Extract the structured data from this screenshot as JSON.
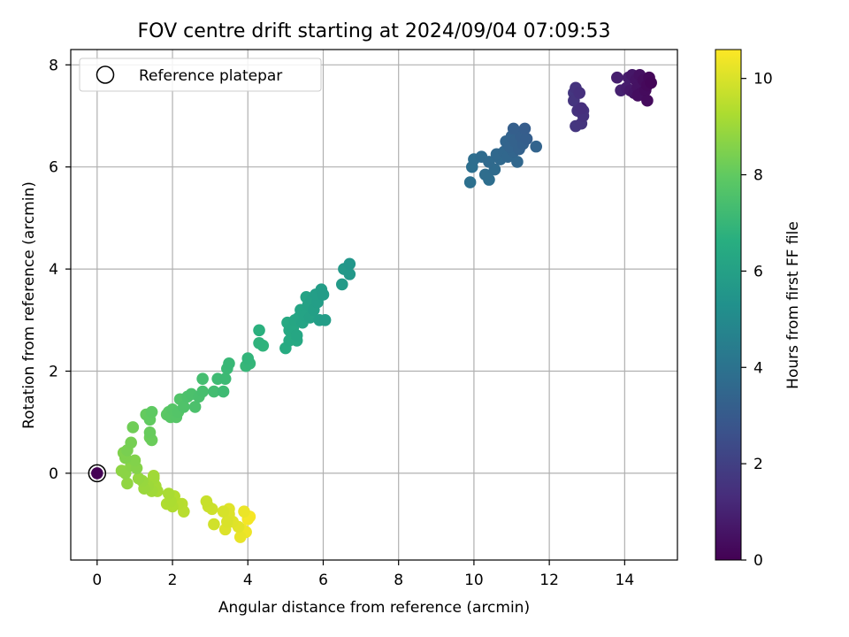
{
  "chart_data": {
    "type": "scatter",
    "title": "FOV centre drift starting at 2024/09/04 07:09:53",
    "xlabel": "Angular distance from reference (arcmin)",
    "ylabel": "Rotation from reference (arcmin)",
    "xlim": [
      -0.7,
      15.4
    ],
    "ylim": [
      -1.7,
      8.3
    ],
    "xticks": [
      0,
      2,
      4,
      6,
      8,
      10,
      12,
      14
    ],
    "yticks": [
      0,
      2,
      4,
      6,
      8
    ],
    "grid": true,
    "legend": {
      "position": "top-left",
      "entries": [
        "Reference platepar"
      ]
    },
    "reference_point": {
      "x": 0,
      "y": 0,
      "hours": 0
    },
    "colorbar": {
      "label": "Hours from first FF file",
      "range": [
        0,
        10.6
      ],
      "ticks": [
        0,
        2,
        4,
        6,
        8,
        10
      ],
      "colormap": "viridis"
    },
    "points": [
      {
        "x": 13.8,
        "y": 7.75,
        "h": 0.9
      },
      {
        "x": 13.9,
        "y": 7.5,
        "h": 0.95
      },
      {
        "x": 14.05,
        "y": 7.55,
        "h": 0.85
      },
      {
        "x": 14.1,
        "y": 7.75,
        "h": 0.8
      },
      {
        "x": 14.15,
        "y": 7.5,
        "h": 0.7
      },
      {
        "x": 14.2,
        "y": 7.8,
        "h": 0.65
      },
      {
        "x": 14.25,
        "y": 7.45,
        "h": 0.6
      },
      {
        "x": 14.3,
        "y": 7.7,
        "h": 0.55
      },
      {
        "x": 14.35,
        "y": 7.55,
        "h": 0.5
      },
      {
        "x": 14.4,
        "y": 7.8,
        "h": 0.45
      },
      {
        "x": 14.45,
        "y": 7.45,
        "h": 0.4
      },
      {
        "x": 14.5,
        "y": 7.7,
        "h": 0.35
      },
      {
        "x": 14.55,
        "y": 7.5,
        "h": 0.3
      },
      {
        "x": 14.6,
        "y": 7.6,
        "h": 0.25
      },
      {
        "x": 14.65,
        "y": 7.75,
        "h": 0.2
      },
      {
        "x": 14.6,
        "y": 7.3,
        "h": 0.3
      },
      {
        "x": 14.7,
        "y": 7.65,
        "h": 0.15
      },
      {
        "x": 14.35,
        "y": 7.4,
        "h": 0.4
      },
      {
        "x": 12.65,
        "y": 7.3,
        "h": 1.6
      },
      {
        "x": 12.7,
        "y": 7.55,
        "h": 1.55
      },
      {
        "x": 12.75,
        "y": 7.1,
        "h": 1.5
      },
      {
        "x": 12.8,
        "y": 7.45,
        "h": 1.45
      },
      {
        "x": 12.85,
        "y": 7.15,
        "h": 1.4
      },
      {
        "x": 12.9,
        "y": 7.0,
        "h": 1.5
      },
      {
        "x": 12.7,
        "y": 6.8,
        "h": 1.65
      },
      {
        "x": 12.85,
        "y": 6.85,
        "h": 1.6
      },
      {
        "x": 12.65,
        "y": 7.45,
        "h": 1.7
      },
      {
        "x": 12.9,
        "y": 7.1,
        "h": 1.55
      },
      {
        "x": 9.9,
        "y": 5.7,
        "h": 3.9
      },
      {
        "x": 9.95,
        "y": 6.0,
        "h": 3.85
      },
      {
        "x": 10.0,
        "y": 6.15,
        "h": 3.8
      },
      {
        "x": 10.2,
        "y": 6.2,
        "h": 3.7
      },
      {
        "x": 10.3,
        "y": 5.85,
        "h": 3.75
      },
      {
        "x": 10.4,
        "y": 6.1,
        "h": 3.65
      },
      {
        "x": 10.4,
        "y": 5.75,
        "h": 3.8
      },
      {
        "x": 10.55,
        "y": 5.95,
        "h": 3.7
      },
      {
        "x": 10.6,
        "y": 6.25,
        "h": 3.55
      },
      {
        "x": 10.7,
        "y": 6.15,
        "h": 3.6
      },
      {
        "x": 10.8,
        "y": 6.3,
        "h": 3.5
      },
      {
        "x": 10.85,
        "y": 6.5,
        "h": 3.45
      },
      {
        "x": 10.9,
        "y": 6.2,
        "h": 3.5
      },
      {
        "x": 10.95,
        "y": 6.4,
        "h": 3.4
      },
      {
        "x": 11.0,
        "y": 6.6,
        "h": 3.35
      },
      {
        "x": 11.05,
        "y": 6.3,
        "h": 3.45
      },
      {
        "x": 11.1,
        "y": 6.5,
        "h": 3.3
      },
      {
        "x": 11.15,
        "y": 6.1,
        "h": 3.5
      },
      {
        "x": 11.2,
        "y": 6.35,
        "h": 3.3
      },
      {
        "x": 11.25,
        "y": 6.6,
        "h": 3.2
      },
      {
        "x": 11.3,
        "y": 6.45,
        "h": 3.25
      },
      {
        "x": 11.35,
        "y": 6.75,
        "h": 3.1
      },
      {
        "x": 11.4,
        "y": 6.55,
        "h": 3.15
      },
      {
        "x": 11.05,
        "y": 6.75,
        "h": 3.2
      },
      {
        "x": 11.65,
        "y": 6.4,
        "h": 3.4
      },
      {
        "x": 6.7,
        "y": 4.1,
        "h": 5.55
      },
      {
        "x": 6.7,
        "y": 3.9,
        "h": 5.6
      },
      {
        "x": 6.55,
        "y": 4.0,
        "h": 5.65
      },
      {
        "x": 6.5,
        "y": 3.7,
        "h": 5.7
      },
      {
        "x": 6.0,
        "y": 3.5,
        "h": 5.8
      },
      {
        "x": 5.95,
        "y": 3.6,
        "h": 5.85
      },
      {
        "x": 5.85,
        "y": 3.35,
        "h": 5.9
      },
      {
        "x": 5.8,
        "y": 3.5,
        "h": 5.9
      },
      {
        "x": 5.75,
        "y": 3.2,
        "h": 5.95
      },
      {
        "x": 5.7,
        "y": 3.4,
        "h": 6.0
      },
      {
        "x": 5.65,
        "y": 3.05,
        "h": 6.05
      },
      {
        "x": 5.6,
        "y": 3.3,
        "h": 6.05
      },
      {
        "x": 5.55,
        "y": 3.45,
        "h": 6.1
      },
      {
        "x": 5.5,
        "y": 3.1,
        "h": 6.1
      },
      {
        "x": 5.45,
        "y": 2.95,
        "h": 6.15
      },
      {
        "x": 5.4,
        "y": 3.2,
        "h": 6.15
      },
      {
        "x": 5.35,
        "y": 3.05,
        "h": 6.2
      },
      {
        "x": 5.3,
        "y": 2.7,
        "h": 6.25
      },
      {
        "x": 5.25,
        "y": 3.0,
        "h": 6.25
      },
      {
        "x": 5.2,
        "y": 2.85,
        "h": 6.3
      },
      {
        "x": 5.1,
        "y": 2.8,
        "h": 6.35
      },
      {
        "x": 5.1,
        "y": 2.6,
        "h": 6.4
      },
      {
        "x": 5.05,
        "y": 2.95,
        "h": 6.4
      },
      {
        "x": 5.3,
        "y": 2.6,
        "h": 6.35
      },
      {
        "x": 5.0,
        "y": 2.45,
        "h": 6.5
      },
      {
        "x": 5.9,
        "y": 3.0,
        "h": 5.9
      },
      {
        "x": 6.05,
        "y": 3.0,
        "h": 5.85
      },
      {
        "x": 4.3,
        "y": 2.8,
        "h": 6.7
      },
      {
        "x": 4.3,
        "y": 2.55,
        "h": 6.8
      },
      {
        "x": 4.4,
        "y": 2.5,
        "h": 6.85
      },
      {
        "x": 4.0,
        "y": 2.25,
        "h": 6.9
      },
      {
        "x": 3.95,
        "y": 2.1,
        "h": 7.0
      },
      {
        "x": 4.05,
        "y": 2.15,
        "h": 6.95
      },
      {
        "x": 3.5,
        "y": 2.15,
        "h": 7.05
      },
      {
        "x": 3.45,
        "y": 2.05,
        "h": 7.1
      },
      {
        "x": 3.4,
        "y": 1.85,
        "h": 7.15
      },
      {
        "x": 3.35,
        "y": 1.6,
        "h": 7.2
      },
      {
        "x": 3.2,
        "y": 1.85,
        "h": 7.2
      },
      {
        "x": 3.1,
        "y": 1.6,
        "h": 7.3
      },
      {
        "x": 2.8,
        "y": 1.85,
        "h": 7.35
      },
      {
        "x": 2.8,
        "y": 1.6,
        "h": 7.4
      },
      {
        "x": 2.7,
        "y": 1.5,
        "h": 7.45
      },
      {
        "x": 2.6,
        "y": 1.3,
        "h": 7.5
      },
      {
        "x": 2.5,
        "y": 1.55,
        "h": 7.5
      },
      {
        "x": 2.4,
        "y": 1.5,
        "h": 7.55
      },
      {
        "x": 2.3,
        "y": 1.3,
        "h": 7.6
      },
      {
        "x": 2.2,
        "y": 1.45,
        "h": 7.65
      },
      {
        "x": 2.15,
        "y": 1.2,
        "h": 7.7
      },
      {
        "x": 2.1,
        "y": 1.1,
        "h": 7.75
      },
      {
        "x": 2.0,
        "y": 1.25,
        "h": 7.75
      },
      {
        "x": 1.95,
        "y": 1.1,
        "h": 7.8
      },
      {
        "x": 1.9,
        "y": 1.2,
        "h": 7.85
      },
      {
        "x": 1.85,
        "y": 1.15,
        "h": 7.85
      },
      {
        "x": 1.45,
        "y": 1.2,
        "h": 7.95
      },
      {
        "x": 1.4,
        "y": 1.05,
        "h": 8.0
      },
      {
        "x": 1.3,
        "y": 1.15,
        "h": 8.05
      },
      {
        "x": 1.4,
        "y": 0.8,
        "h": 8.1
      },
      {
        "x": 1.45,
        "y": 0.65,
        "h": 8.15
      },
      {
        "x": 1.4,
        "y": 0.7,
        "h": 8.2
      },
      {
        "x": 0.95,
        "y": 0.9,
        "h": 8.25
      },
      {
        "x": 0.9,
        "y": 0.6,
        "h": 8.35
      },
      {
        "x": 0.8,
        "y": 0.45,
        "h": 8.4
      },
      {
        "x": 0.75,
        "y": 0.3,
        "h": 8.5
      },
      {
        "x": 0.7,
        "y": 0.4,
        "h": 8.5
      },
      {
        "x": 1.0,
        "y": 0.25,
        "h": 8.55
      },
      {
        "x": 1.05,
        "y": 0.1,
        "h": 8.6
      },
      {
        "x": 0.9,
        "y": 0.15,
        "h": 8.65
      },
      {
        "x": 0.75,
        "y": 0.0,
        "h": 8.7
      },
      {
        "x": 0.65,
        "y": 0.05,
        "h": 8.75
      },
      {
        "x": 0.8,
        "y": -0.2,
        "h": 8.8
      },
      {
        "x": 1.1,
        "y": -0.1,
        "h": 8.85
      },
      {
        "x": 1.2,
        "y": -0.15,
        "h": 8.9
      },
      {
        "x": 1.25,
        "y": -0.3,
        "h": 8.95
      },
      {
        "x": 1.35,
        "y": -0.25,
        "h": 9.0
      },
      {
        "x": 1.45,
        "y": -0.35,
        "h": 9.05
      },
      {
        "x": 1.5,
        "y": -0.1,
        "h": 9.05
      },
      {
        "x": 1.55,
        "y": -0.25,
        "h": 9.1
      },
      {
        "x": 1.6,
        "y": -0.35,
        "h": 9.15
      },
      {
        "x": 1.5,
        "y": -0.05,
        "h": 9.1
      },
      {
        "x": 1.9,
        "y": -0.4,
        "h": 9.2
      },
      {
        "x": 1.95,
        "y": -0.55,
        "h": 9.25
      },
      {
        "x": 2.0,
        "y": -0.65,
        "h": 9.3
      },
      {
        "x": 1.85,
        "y": -0.6,
        "h": 9.3
      },
      {
        "x": 2.05,
        "y": -0.45,
        "h": 9.35
      },
      {
        "x": 2.15,
        "y": -0.6,
        "h": 9.4
      },
      {
        "x": 2.3,
        "y": -0.75,
        "h": 9.45
      },
      {
        "x": 2.25,
        "y": -0.6,
        "h": 9.45
      },
      {
        "x": 2.9,
        "y": -0.55,
        "h": 9.7
      },
      {
        "x": 2.95,
        "y": -0.65,
        "h": 9.75
      },
      {
        "x": 3.05,
        "y": -0.7,
        "h": 9.8
      },
      {
        "x": 3.1,
        "y": -1.0,
        "h": 9.85
      },
      {
        "x": 3.35,
        "y": -0.75,
        "h": 9.95
      },
      {
        "x": 3.45,
        "y": -0.95,
        "h": 10.0
      },
      {
        "x": 3.4,
        "y": -1.1,
        "h": 10.05
      },
      {
        "x": 3.5,
        "y": -0.8,
        "h": 10.05
      },
      {
        "x": 3.6,
        "y": -0.95,
        "h": 10.1
      },
      {
        "x": 3.75,
        "y": -1.05,
        "h": 10.15
      },
      {
        "x": 3.8,
        "y": -1.25,
        "h": 10.25
      },
      {
        "x": 3.9,
        "y": -0.75,
        "h": 10.3
      },
      {
        "x": 3.95,
        "y": -1.15,
        "h": 10.35
      },
      {
        "x": 4.0,
        "y": -0.9,
        "h": 10.45
      },
      {
        "x": 3.85,
        "y": -1.1,
        "h": 10.4
      },
      {
        "x": 3.5,
        "y": -0.7,
        "h": 10.1
      },
      {
        "x": 4.05,
        "y": -0.85,
        "h": 10.5
      }
    ]
  }
}
